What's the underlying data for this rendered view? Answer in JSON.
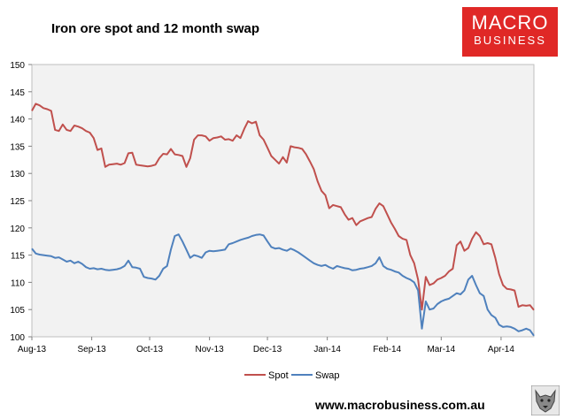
{
  "header": {
    "title": "Iron ore spot and 12 month swap"
  },
  "logo": {
    "line1": "MACRO",
    "line2": "BUSINESS",
    "color": "#e02826"
  },
  "footer": {
    "url": "www.macrobusiness.com.au",
    "mascot_icon": "wolf-icon"
  },
  "chart_data": {
    "type": "line",
    "title": "Iron ore spot and 12 month swap",
    "xlabel": "",
    "ylabel": "",
    "ylim": [
      100,
      150
    ],
    "yticks": [
      100,
      105,
      110,
      115,
      120,
      125,
      130,
      135,
      140,
      145,
      150
    ],
    "xlim": [
      0,
      260
    ],
    "xticks": [
      {
        "label": "Aug-13",
        "pos": 0
      },
      {
        "label": "Sep-13",
        "pos": 31
      },
      {
        "label": "Oct-13",
        "pos": 61
      },
      {
        "label": "Nov-13",
        "pos": 92
      },
      {
        "label": "Dec-13",
        "pos": 122
      },
      {
        "label": "Jan-14",
        "pos": 153
      },
      {
        "label": "Feb-14",
        "pos": 184
      },
      {
        "label": "Mar-14",
        "pos": 212
      },
      {
        "label": "Apr-14",
        "pos": 243
      }
    ],
    "legend_position": "bottom",
    "grid": "none",
    "background": "#f2f2f2",
    "series": [
      {
        "name": "Spot",
        "color": "#c0504d",
        "x": [
          0,
          2,
          4,
          6,
          8,
          10,
          12,
          14,
          16,
          18,
          20,
          22,
          24,
          26,
          28,
          30,
          32,
          34,
          36,
          38,
          40,
          42,
          44,
          46,
          48,
          50,
          52,
          54,
          56,
          58,
          60,
          62,
          64,
          66,
          68,
          70,
          72,
          74,
          76,
          78,
          80,
          82,
          84,
          86,
          88,
          90,
          92,
          94,
          96,
          98,
          100,
          102,
          104,
          106,
          108,
          110,
          112,
          114,
          116,
          118,
          120,
          122,
          124,
          126,
          128,
          130,
          132,
          134,
          136,
          138,
          140,
          142,
          144,
          146,
          148,
          150,
          152,
          154,
          156,
          158,
          160,
          162,
          164,
          166,
          168,
          170,
          172,
          174,
          176,
          178,
          180,
          182,
          184,
          186,
          188,
          190,
          192,
          194,
          196,
          198,
          200,
          202,
          204,
          206,
          208,
          210,
          212,
          214,
          216,
          218,
          220,
          222,
          224,
          226,
          228,
          230,
          232,
          234,
          236,
          238,
          240,
          242,
          244,
          246,
          248,
          250,
          252,
          254,
          256,
          258,
          260
        ],
        "values": [
          141.5,
          142.8,
          142.5,
          142.0,
          141.8,
          141.5,
          138.0,
          137.8,
          139.0,
          138.0,
          137.8,
          138.8,
          138.6,
          138.3,
          137.8,
          137.5,
          136.5,
          134.3,
          134.6,
          131.2,
          131.6,
          131.7,
          131.8,
          131.6,
          131.9,
          133.7,
          133.8,
          131.6,
          131.5,
          131.4,
          131.3,
          131.4,
          131.6,
          132.8,
          133.6,
          133.5,
          134.5,
          133.5,
          133.4,
          133.2,
          131.2,
          132.8,
          136.2,
          137.0,
          137.0,
          136.8,
          136.0,
          136.5,
          136.6,
          136.8,
          136.2,
          136.3,
          136.0,
          137.0,
          136.5,
          138.2,
          139.6,
          139.2,
          139.5,
          137.0,
          136.2,
          134.7,
          133.2,
          132.5,
          131.8,
          133.0,
          132.0,
          135.0,
          134.8,
          134.7,
          134.5,
          133.5,
          132.2,
          130.8,
          128.5,
          126.8,
          126.0,
          123.6,
          124.2,
          124.0,
          123.8,
          122.5,
          121.5,
          121.8,
          120.5,
          121.2,
          121.5,
          121.8,
          122.0,
          123.5,
          124.5,
          124.0,
          122.5,
          121.0,
          119.8,
          118.5,
          118.0,
          117.8,
          115.0,
          113.5,
          110.5,
          105.0,
          111.0,
          109.5,
          109.8,
          110.5,
          110.8,
          111.2,
          112.0,
          112.5,
          116.8,
          117.5,
          115.8,
          116.3,
          118.0,
          119.2,
          118.5,
          117.0,
          117.2,
          117.0,
          114.5,
          111.5,
          109.5,
          108.8,
          108.7,
          108.5,
          105.5,
          105.8,
          105.7,
          105.8,
          104.9
        ]
      },
      {
        "name": "Swap",
        "color": "#4f81bd",
        "x": [
          0,
          2,
          4,
          6,
          8,
          10,
          12,
          14,
          16,
          18,
          20,
          22,
          24,
          26,
          28,
          30,
          32,
          34,
          36,
          38,
          40,
          42,
          44,
          46,
          48,
          50,
          52,
          54,
          56,
          58,
          60,
          62,
          64,
          66,
          68,
          70,
          72,
          74,
          76,
          78,
          80,
          82,
          84,
          86,
          88,
          90,
          92,
          94,
          96,
          98,
          100,
          102,
          104,
          106,
          108,
          110,
          112,
          114,
          116,
          118,
          120,
          122,
          124,
          126,
          128,
          130,
          132,
          134,
          136,
          138,
          140,
          142,
          144,
          146,
          148,
          150,
          152,
          154,
          156,
          158,
          160,
          162,
          164,
          166,
          168,
          170,
          172,
          174,
          176,
          178,
          180,
          182,
          184,
          186,
          188,
          190,
          192,
          194,
          196,
          198,
          200,
          202,
          204,
          206,
          208,
          210,
          212,
          214,
          216,
          218,
          220,
          222,
          224,
          226,
          228,
          230,
          232,
          234,
          236,
          238,
          240,
          242,
          244,
          246,
          248,
          250,
          252,
          254,
          256,
          258,
          260
        ],
        "values": [
          116.2,
          115.3,
          115.1,
          115.0,
          114.9,
          114.8,
          114.5,
          114.6,
          114.2,
          113.8,
          114.0,
          113.5,
          113.8,
          113.4,
          112.8,
          112.5,
          112.6,
          112.4,
          112.5,
          112.3,
          112.2,
          112.3,
          112.4,
          112.6,
          113.0,
          114.0,
          112.8,
          112.7,
          112.5,
          111.0,
          110.8,
          110.7,
          110.5,
          111.2,
          112.5,
          113.0,
          116.0,
          118.5,
          118.8,
          117.5,
          116.0,
          114.5,
          115.0,
          114.8,
          114.5,
          115.5,
          115.8,
          115.7,
          115.8,
          115.9,
          116.0,
          117.0,
          117.2,
          117.5,
          117.8,
          118.0,
          118.2,
          118.5,
          118.7,
          118.8,
          118.6,
          117.5,
          116.5,
          116.2,
          116.3,
          116.0,
          115.8,
          116.2,
          115.9,
          115.5,
          115.0,
          114.5,
          114.0,
          113.5,
          113.2,
          113.0,
          113.2,
          112.8,
          112.5,
          113.0,
          112.8,
          112.6,
          112.5,
          112.2,
          112.3,
          112.5,
          112.6,
          112.8,
          113.0,
          113.5,
          114.6,
          113.0,
          112.5,
          112.3,
          112.0,
          111.8,
          111.2,
          110.8,
          110.5,
          110.0,
          108.5,
          101.5,
          106.5,
          105.0,
          105.2,
          106.0,
          106.5,
          106.8,
          107.0,
          107.5,
          108.0,
          107.8,
          108.5,
          110.5,
          111.2,
          109.5,
          108.0,
          107.5,
          105.0,
          104.0,
          103.5,
          102.2,
          101.8,
          101.9,
          101.8,
          101.5,
          101.0,
          101.2,
          101.5,
          101.2,
          100.2
        ]
      }
    ]
  }
}
